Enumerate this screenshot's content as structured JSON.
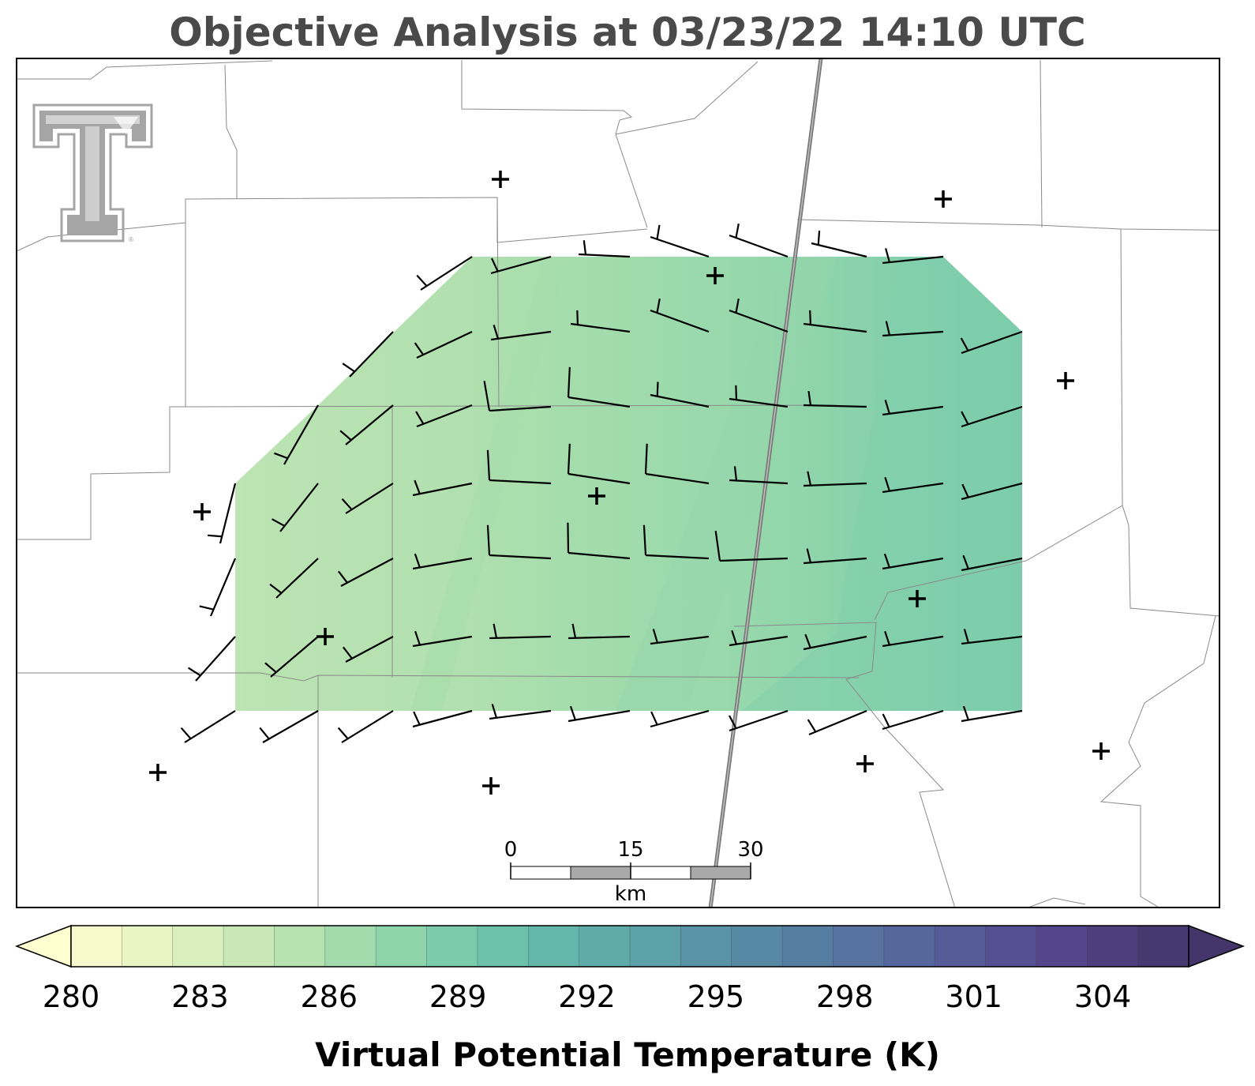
{
  "title": "Objective Analysis at 03/23/22 14:10 UTC",
  "colorbar": {
    "label": "Virtual Potential Temperature (K)",
    "min": 280,
    "max": 306,
    "tick_labels": [
      "280",
      "283",
      "286",
      "289",
      "292",
      "295",
      "298",
      "301",
      "304"
    ],
    "colors": [
      "#f7f9cc",
      "#e9f5c2",
      "#d9efbe",
      "#c8e9b6",
      "#b6e2b0",
      "#a2dcac",
      "#8ed4ab",
      "#7ccbaa",
      "#6dc1ab",
      "#65b6aa",
      "#5fabaa",
      "#5ca0a8",
      "#5994a6",
      "#5889a4",
      "#567ea2",
      "#56739f",
      "#55679c",
      "#565c98",
      "#555092",
      "#53468a",
      "#4e3e7e",
      "#463972"
    ]
  },
  "scale_bar": {
    "labels": [
      "0",
      "15",
      "30"
    ],
    "unit": "km"
  },
  "logo": {
    "name": "Texas Tech Double T",
    "color": "#a5a5a5"
  },
  "field_colors": {
    "cool": "#b8e2b0",
    "mid": "#a0dcab",
    "warm": "#8fd6ab",
    "warmest": "#78cbac"
  },
  "stations_count_visible": 13,
  "wind_barb_note": "Wind barbs in knots on analysis grid"
}
